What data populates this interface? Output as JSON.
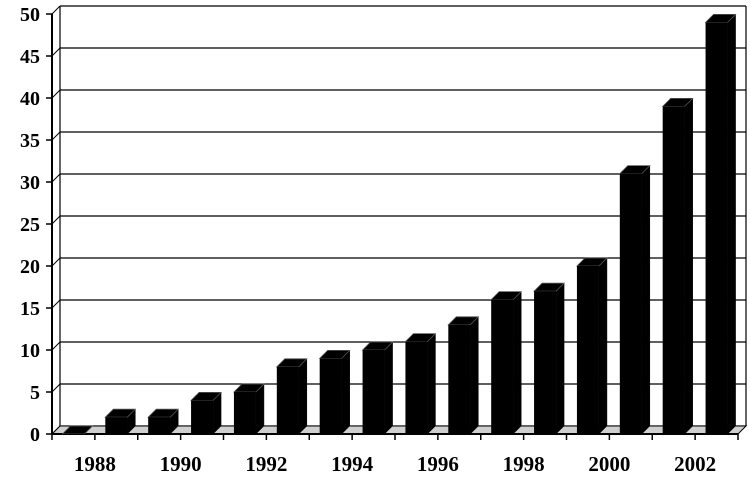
{
  "chart_data": {
    "type": "bar",
    "style": "3d-bars",
    "x": [
      1988,
      1989,
      1990,
      1991,
      1992,
      1993,
      1994,
      1995,
      1996,
      1997,
      1998,
      1999,
      2000,
      2001,
      2002,
      2003
    ],
    "values": [
      0,
      2,
      2,
      4,
      5,
      8,
      9,
      10,
      11,
      13,
      16,
      17,
      20,
      31,
      39,
      49
    ],
    "x_tick_labels": [
      "1988",
      "1990",
      "1992",
      "1994",
      "1996",
      "1998",
      "2000",
      "2002"
    ],
    "y_tick_labels": [
      "0",
      "5",
      "10",
      "15",
      "20",
      "25",
      "30",
      "35",
      "40",
      "45",
      "50"
    ],
    "ylim": [
      0,
      50
    ],
    "title": "",
    "xlabel": "",
    "ylabel": "",
    "grid": "horizontal",
    "legend": "none",
    "colors": {
      "bar": "#000000",
      "bar_side": "#000000",
      "bar_top": "#000000",
      "axis": "#000000",
      "grid": "#000000",
      "background": "#ffffff"
    }
  }
}
